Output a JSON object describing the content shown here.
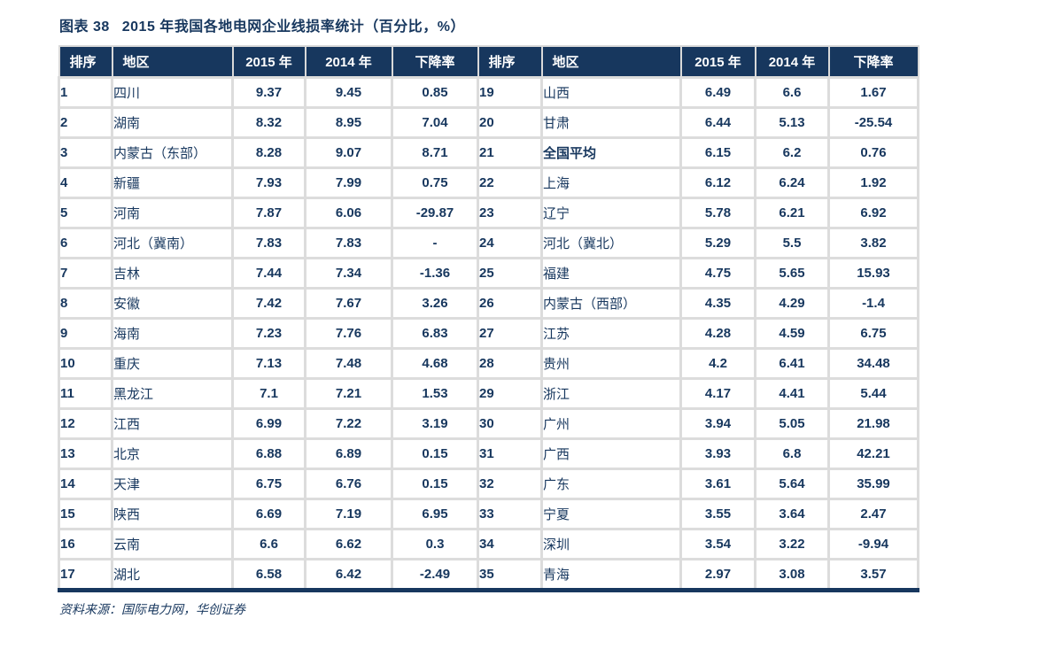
{
  "header": {
    "figure_label": "图表 38",
    "title": "2015 年我国各地电网企业线损率统计（百分比，%）"
  },
  "colors": {
    "header_bg": "#17375E",
    "navy_text": "#17375E",
    "positive_decline": "#FF0000",
    "negative_decline": "#00B050",
    "grid_line": "#DCDCDC"
  },
  "chart_data": {
    "type": "table",
    "title": "图表 38  2015 年我国各地电网企业线损率统计（百分比，%）",
    "columns": [
      "排序",
      "地区",
      "2015 年",
      "2014 年",
      "下降率"
    ],
    "left_rows": [
      {
        "rank": "1",
        "region": "四川",
        "y2015": "9.37",
        "y2014": "9.45",
        "decline": "0.85",
        "decline_color": "red",
        "highlight": false
      },
      {
        "rank": "2",
        "region": "湖南",
        "y2015": "8.32",
        "y2014": "8.95",
        "decline": "7.04",
        "decline_color": "red",
        "highlight": false
      },
      {
        "rank": "3",
        "region": "内蒙古（东部）",
        "y2015": "8.28",
        "y2014": "9.07",
        "decline": "8.71",
        "decline_color": "red",
        "highlight": false
      },
      {
        "rank": "4",
        "region": "新疆",
        "y2015": "7.93",
        "y2014": "7.99",
        "decline": "0.75",
        "decline_color": "red",
        "highlight": false
      },
      {
        "rank": "5",
        "region": "河南",
        "y2015": "7.87",
        "y2014": "6.06",
        "decline": "-29.87",
        "decline_color": "green",
        "highlight": false
      },
      {
        "rank": "6",
        "region": "河北（冀南）",
        "y2015": "7.83",
        "y2014": "7.83",
        "decline": "-",
        "decline_color": "green",
        "highlight": false
      },
      {
        "rank": "7",
        "region": "吉林",
        "y2015": "7.44",
        "y2014": "7.34",
        "decline": "-1.36",
        "decline_color": "green",
        "highlight": false
      },
      {
        "rank": "8",
        "region": "安徽",
        "y2015": "7.42",
        "y2014": "7.67",
        "decline": "3.26",
        "decline_color": "red",
        "highlight": false
      },
      {
        "rank": "9",
        "region": "海南",
        "y2015": "7.23",
        "y2014": "7.76",
        "decline": "6.83",
        "decline_color": "red",
        "highlight": false
      },
      {
        "rank": "10",
        "region": "重庆",
        "y2015": "7.13",
        "y2014": "7.48",
        "decline": "4.68",
        "decline_color": "red",
        "highlight": false
      },
      {
        "rank": "11",
        "region": "黑龙江",
        "y2015": "7.1",
        "y2014": "7.21",
        "decline": "1.53",
        "decline_color": "red",
        "highlight": false
      },
      {
        "rank": "12",
        "region": "江西",
        "y2015": "6.99",
        "y2014": "7.22",
        "decline": "3.19",
        "decline_color": "red",
        "highlight": false
      },
      {
        "rank": "13",
        "region": "北京",
        "y2015": "6.88",
        "y2014": "6.89",
        "decline": "0.15",
        "decline_color": "red",
        "highlight": false
      },
      {
        "rank": "14",
        "region": "天津",
        "y2015": "6.75",
        "y2014": "6.76",
        "decline": "0.15",
        "decline_color": "red",
        "highlight": false
      },
      {
        "rank": "15",
        "region": "陕西",
        "y2015": "6.69",
        "y2014": "7.19",
        "decline": "6.95",
        "decline_color": "red",
        "highlight": false
      },
      {
        "rank": "16",
        "region": "云南",
        "y2015": "6.6",
        "y2014": "6.62",
        "decline": "0.3",
        "decline_color": "red",
        "highlight": false
      },
      {
        "rank": "17",
        "region": "湖北",
        "y2015": "6.58",
        "y2014": "6.42",
        "decline": "-2.49",
        "decline_color": "green",
        "highlight": false
      }
    ],
    "right_rows": [
      {
        "rank": "19",
        "region": "山西",
        "y2015": "6.49",
        "y2014": "6.6",
        "decline": "1.67",
        "decline_color": "red",
        "highlight": false
      },
      {
        "rank": "20",
        "region": "甘肃",
        "y2015": "6.44",
        "y2014": "5.13",
        "decline": "-25.54",
        "decline_color": "green",
        "highlight": false
      },
      {
        "rank": "21",
        "region": "全国平均",
        "y2015": "6.15",
        "y2014": "6.2",
        "decline": "0.76",
        "decline_color": "red",
        "highlight": true
      },
      {
        "rank": "22",
        "region": "上海",
        "y2015": "6.12",
        "y2014": "6.24",
        "decline": "1.92",
        "decline_color": "red",
        "highlight": false
      },
      {
        "rank": "23",
        "region": "辽宁",
        "y2015": "5.78",
        "y2014": "6.21",
        "decline": "6.92",
        "decline_color": "red",
        "highlight": false
      },
      {
        "rank": "24",
        "region": "河北（冀北）",
        "y2015": "5.29",
        "y2014": "5.5",
        "decline": "3.82",
        "decline_color": "red",
        "highlight": false
      },
      {
        "rank": "25",
        "region": "福建",
        "y2015": "4.75",
        "y2014": "5.65",
        "decline": "15.93",
        "decline_color": "red",
        "highlight": false
      },
      {
        "rank": "26",
        "region": "内蒙古（西部）",
        "y2015": "4.35",
        "y2014": "4.29",
        "decline": "-1.4",
        "decline_color": "green",
        "highlight": false
      },
      {
        "rank": "27",
        "region": "江苏",
        "y2015": "4.28",
        "y2014": "4.59",
        "decline": "6.75",
        "decline_color": "red",
        "highlight": false
      },
      {
        "rank": "28",
        "region": "贵州",
        "y2015": "4.2",
        "y2014": "6.41",
        "decline": "34.48",
        "decline_color": "red",
        "highlight": false
      },
      {
        "rank": "29",
        "region": "浙江",
        "y2015": "4.17",
        "y2014": "4.41",
        "decline": "5.44",
        "decline_color": "red",
        "highlight": false
      },
      {
        "rank": "30",
        "region": "广州",
        "y2015": "3.94",
        "y2014": "5.05",
        "decline": "21.98",
        "decline_color": "red",
        "highlight": false
      },
      {
        "rank": "31",
        "region": "广西",
        "y2015": "3.93",
        "y2014": "6.8",
        "decline": "42.21",
        "decline_color": "red",
        "highlight": false
      },
      {
        "rank": "32",
        "region": "广东",
        "y2015": "3.61",
        "y2014": "5.64",
        "decline": "35.99",
        "decline_color": "red",
        "highlight": false
      },
      {
        "rank": "33",
        "region": "宁夏",
        "y2015": "3.55",
        "y2014": "3.64",
        "decline": "2.47",
        "decline_color": "red",
        "highlight": false
      },
      {
        "rank": "34",
        "region": "深圳",
        "y2015": "3.54",
        "y2014": "3.22",
        "decline": "-9.94",
        "decline_color": "green",
        "highlight": false
      },
      {
        "rank": "35",
        "region": "青海",
        "y2015": "2.97",
        "y2014": "3.08",
        "decline": "3.57",
        "decline_color": "red",
        "highlight": false
      }
    ]
  },
  "footer": {
    "source": "资料来源：国际电力网，华创证券"
  }
}
